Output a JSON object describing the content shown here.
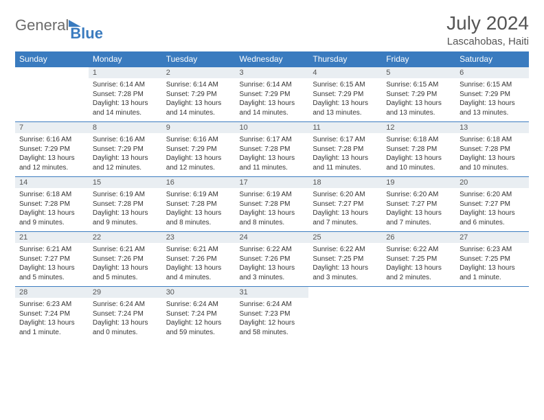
{
  "logo": {
    "part1": "General",
    "part2": "Blue"
  },
  "title": "July 2024",
  "location": "Lascahobas, Haiti",
  "colors": {
    "header_bg": "#3a7bbf",
    "header_fg": "#ffffff",
    "daynum_bg": "#e9eef2",
    "border": "#3a7bbf",
    "text": "#333333",
    "title_color": "#555555"
  },
  "weekdays": [
    "Sunday",
    "Monday",
    "Tuesday",
    "Wednesday",
    "Thursday",
    "Friday",
    "Saturday"
  ],
  "weeks": [
    [
      null,
      {
        "n": "1",
        "sunrise": "6:14 AM",
        "sunset": "7:28 PM",
        "dl1": "Daylight: 13 hours",
        "dl2": "and 14 minutes."
      },
      {
        "n": "2",
        "sunrise": "6:14 AM",
        "sunset": "7:29 PM",
        "dl1": "Daylight: 13 hours",
        "dl2": "and 14 minutes."
      },
      {
        "n": "3",
        "sunrise": "6:14 AM",
        "sunset": "7:29 PM",
        "dl1": "Daylight: 13 hours",
        "dl2": "and 14 minutes."
      },
      {
        "n": "4",
        "sunrise": "6:15 AM",
        "sunset": "7:29 PM",
        "dl1": "Daylight: 13 hours",
        "dl2": "and 13 minutes."
      },
      {
        "n": "5",
        "sunrise": "6:15 AM",
        "sunset": "7:29 PM",
        "dl1": "Daylight: 13 hours",
        "dl2": "and 13 minutes."
      },
      {
        "n": "6",
        "sunrise": "6:15 AM",
        "sunset": "7:29 PM",
        "dl1": "Daylight: 13 hours",
        "dl2": "and 13 minutes."
      }
    ],
    [
      {
        "n": "7",
        "sunrise": "6:16 AM",
        "sunset": "7:29 PM",
        "dl1": "Daylight: 13 hours",
        "dl2": "and 12 minutes."
      },
      {
        "n": "8",
        "sunrise": "6:16 AM",
        "sunset": "7:29 PM",
        "dl1": "Daylight: 13 hours",
        "dl2": "and 12 minutes."
      },
      {
        "n": "9",
        "sunrise": "6:16 AM",
        "sunset": "7:29 PM",
        "dl1": "Daylight: 13 hours",
        "dl2": "and 12 minutes."
      },
      {
        "n": "10",
        "sunrise": "6:17 AM",
        "sunset": "7:28 PM",
        "dl1": "Daylight: 13 hours",
        "dl2": "and 11 minutes."
      },
      {
        "n": "11",
        "sunrise": "6:17 AM",
        "sunset": "7:28 PM",
        "dl1": "Daylight: 13 hours",
        "dl2": "and 11 minutes."
      },
      {
        "n": "12",
        "sunrise": "6:18 AM",
        "sunset": "7:28 PM",
        "dl1": "Daylight: 13 hours",
        "dl2": "and 10 minutes."
      },
      {
        "n": "13",
        "sunrise": "6:18 AM",
        "sunset": "7:28 PM",
        "dl1": "Daylight: 13 hours",
        "dl2": "and 10 minutes."
      }
    ],
    [
      {
        "n": "14",
        "sunrise": "6:18 AM",
        "sunset": "7:28 PM",
        "dl1": "Daylight: 13 hours",
        "dl2": "and 9 minutes."
      },
      {
        "n": "15",
        "sunrise": "6:19 AM",
        "sunset": "7:28 PM",
        "dl1": "Daylight: 13 hours",
        "dl2": "and 9 minutes."
      },
      {
        "n": "16",
        "sunrise": "6:19 AM",
        "sunset": "7:28 PM",
        "dl1": "Daylight: 13 hours",
        "dl2": "and 8 minutes."
      },
      {
        "n": "17",
        "sunrise": "6:19 AM",
        "sunset": "7:28 PM",
        "dl1": "Daylight: 13 hours",
        "dl2": "and 8 minutes."
      },
      {
        "n": "18",
        "sunrise": "6:20 AM",
        "sunset": "7:27 PM",
        "dl1": "Daylight: 13 hours",
        "dl2": "and 7 minutes."
      },
      {
        "n": "19",
        "sunrise": "6:20 AM",
        "sunset": "7:27 PM",
        "dl1": "Daylight: 13 hours",
        "dl2": "and 7 minutes."
      },
      {
        "n": "20",
        "sunrise": "6:20 AM",
        "sunset": "7:27 PM",
        "dl1": "Daylight: 13 hours",
        "dl2": "and 6 minutes."
      }
    ],
    [
      {
        "n": "21",
        "sunrise": "6:21 AM",
        "sunset": "7:27 PM",
        "dl1": "Daylight: 13 hours",
        "dl2": "and 5 minutes."
      },
      {
        "n": "22",
        "sunrise": "6:21 AM",
        "sunset": "7:26 PM",
        "dl1": "Daylight: 13 hours",
        "dl2": "and 5 minutes."
      },
      {
        "n": "23",
        "sunrise": "6:21 AM",
        "sunset": "7:26 PM",
        "dl1": "Daylight: 13 hours",
        "dl2": "and 4 minutes."
      },
      {
        "n": "24",
        "sunrise": "6:22 AM",
        "sunset": "7:26 PM",
        "dl1": "Daylight: 13 hours",
        "dl2": "and 3 minutes."
      },
      {
        "n": "25",
        "sunrise": "6:22 AM",
        "sunset": "7:25 PM",
        "dl1": "Daylight: 13 hours",
        "dl2": "and 3 minutes."
      },
      {
        "n": "26",
        "sunrise": "6:22 AM",
        "sunset": "7:25 PM",
        "dl1": "Daylight: 13 hours",
        "dl2": "and 2 minutes."
      },
      {
        "n": "27",
        "sunrise": "6:23 AM",
        "sunset": "7:25 PM",
        "dl1": "Daylight: 13 hours",
        "dl2": "and 1 minute."
      }
    ],
    [
      {
        "n": "28",
        "sunrise": "6:23 AM",
        "sunset": "7:24 PM",
        "dl1": "Daylight: 13 hours",
        "dl2": "and 1 minute."
      },
      {
        "n": "29",
        "sunrise": "6:24 AM",
        "sunset": "7:24 PM",
        "dl1": "Daylight: 13 hours",
        "dl2": "and 0 minutes."
      },
      {
        "n": "30",
        "sunrise": "6:24 AM",
        "sunset": "7:24 PM",
        "dl1": "Daylight: 12 hours",
        "dl2": "and 59 minutes."
      },
      {
        "n": "31",
        "sunrise": "6:24 AM",
        "sunset": "7:23 PM",
        "dl1": "Daylight: 12 hours",
        "dl2": "and 58 minutes."
      },
      null,
      null,
      null
    ]
  ],
  "labels": {
    "sunrise": "Sunrise:",
    "sunset": "Sunset:"
  }
}
